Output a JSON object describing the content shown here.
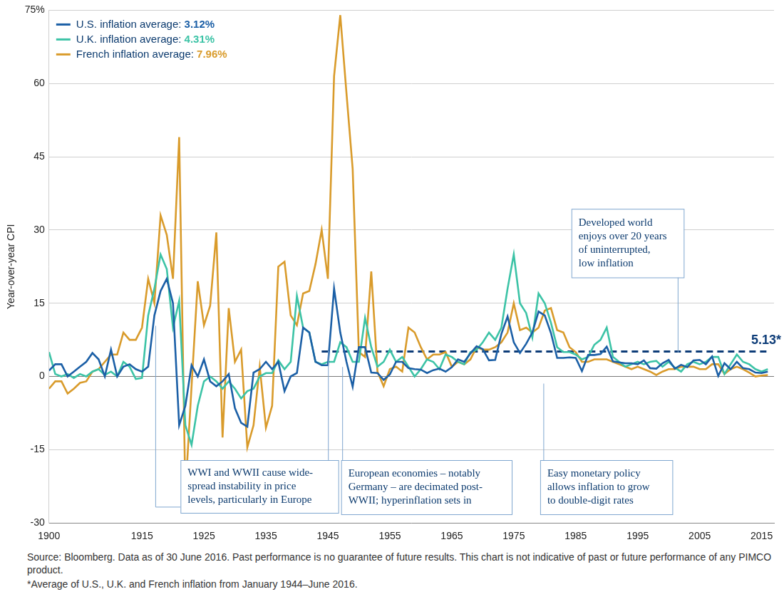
{
  "chart_data": {
    "type": "line",
    "y_label": "Year-over-year CPI",
    "x": [
      1900,
      1901,
      1902,
      1903,
      1904,
      1905,
      1906,
      1907,
      1908,
      1909,
      1910,
      1911,
      1912,
      1913,
      1914,
      1915,
      1916,
      1917,
      1918,
      1919,
      1920,
      1921,
      1922,
      1923,
      1924,
      1925,
      1926,
      1927,
      1928,
      1929,
      1930,
      1931,
      1932,
      1933,
      1934,
      1935,
      1936,
      1937,
      1938,
      1939,
      1940,
      1941,
      1942,
      1943,
      1944,
      1945,
      1946,
      1947,
      1948,
      1949,
      1950,
      1951,
      1952,
      1953,
      1954,
      1955,
      1956,
      1957,
      1958,
      1959,
      1960,
      1961,
      1962,
      1963,
      1964,
      1965,
      1966,
      1967,
      1968,
      1969,
      1970,
      1971,
      1972,
      1973,
      1974,
      1975,
      1976,
      1977,
      1978,
      1979,
      1980,
      1981,
      1982,
      1983,
      1984,
      1985,
      1986,
      1987,
      1988,
      1989,
      1990,
      1991,
      1992,
      1993,
      1994,
      1995,
      1996,
      1997,
      1998,
      1999,
      2000,
      2001,
      2002,
      2003,
      2004,
      2005,
      2006,
      2007,
      2008,
      2009,
      2010,
      2011,
      2012,
      2013,
      2014,
      2015,
      2016
    ],
    "series": [
      {
        "name": "U.S. inflation average: 3.12%",
        "color": "#1b5fa6",
        "line_style": "solid",
        "values": [
          1.2,
          2.5,
          2.5,
          0,
          1,
          2,
          3,
          4.8,
          3.5,
          0,
          5.5,
          0,
          2,
          2.5,
          1.5,
          1,
          2,
          12.5,
          17.5,
          20,
          15,
          -10,
          -6,
          2.3,
          0,
          3.5,
          -1,
          -2,
          -1,
          0.5,
          -6.5,
          -9.5,
          -10.3,
          0.8,
          1.5,
          3,
          1.5,
          3,
          -3,
          0,
          0.7,
          10,
          9,
          3,
          2.3,
          2.3,
          18,
          9,
          3,
          -2.1,
          6,
          6,
          0.8,
          0.7,
          -0.7,
          0.4,
          3,
          3,
          1.7,
          1.5,
          1.4,
          0.7,
          1.3,
          1.6,
          1,
          1.9,
          3.5,
          3,
          4.7,
          6.2,
          5.6,
          3.3,
          3.4,
          8.7,
          12.3,
          7,
          4.8,
          6.7,
          9,
          13.3,
          12.5,
          8.9,
          3.8,
          3.8,
          3.9,
          3.8,
          1.1,
          4.4,
          4.4,
          4.6,
          6.1,
          3.1,
          2.9,
          2.7,
          2.7,
          2.5,
          3.3,
          1.7,
          1.6,
          2.7,
          3.4,
          1.6,
          2.4,
          1.9,
          3.3,
          3.4,
          2.5,
          4.1,
          0.1,
          2.7,
          1.5,
          3,
          1.7,
          1.5,
          0.8,
          0.7,
          1
        ]
      },
      {
        "name": "U.K. inflation average: 4.31%",
        "color": "#3cc3a6",
        "line_style": "solid",
        "values": [
          5,
          0.5,
          0,
          0.5,
          -0.3,
          0.5,
          0,
          1,
          1.5,
          0.3,
          1,
          0,
          3,
          2,
          -0.5,
          -0.3,
          12.5,
          18,
          25,
          22,
          10,
          15.5,
          -10,
          -14,
          -6,
          -1,
          0,
          -1,
          -2.5,
          -1,
          -2.5,
          -4.5,
          -3,
          -2.5,
          0,
          0.7,
          0.7,
          3.3,
          1.5,
          3,
          16.5,
          10,
          9,
          3,
          2.5,
          3,
          3,
          7,
          6,
          3,
          3,
          12,
          6,
          2,
          3,
          5.5,
          3,
          4,
          2,
          0,
          1.5,
          3.5,
          3,
          1.5,
          4.5,
          4,
          3,
          2.5,
          5,
          5.5,
          7,
          9,
          7.5,
          10,
          18,
          25,
          15,
          13,
          8,
          17,
          15,
          11,
          6,
          5,
          5,
          4.5,
          3.5,
          4,
          6.5,
          7.5,
          10,
          4,
          3,
          2,
          2.5,
          3,
          2.5,
          3,
          3.2,
          2,
          3,
          1.8,
          1,
          2.5,
          3,
          2.5,
          3,
          4,
          4,
          0.5,
          2.5,
          4.5,
          3,
          2.5,
          1.5,
          1,
          1.5
        ]
      },
      {
        "name": "French inflation average: 7.96%",
        "color": "#d99b2b",
        "line_style": "solid",
        "values": [
          -2.5,
          -1,
          -1,
          -3.5,
          -2.5,
          -1.3,
          -1,
          1,
          1.5,
          3,
          4.5,
          4.5,
          9,
          7.5,
          7.5,
          10,
          20,
          15,
          33,
          29,
          20,
          49,
          -24,
          -2,
          19.5,
          10.5,
          14.5,
          29.5,
          -12.5,
          14,
          3,
          5.5,
          -14.5,
          -10,
          2,
          -10.5,
          -6,
          22.5,
          23.5,
          12.5,
          10.5,
          17,
          17.5,
          23,
          30,
          20,
          61.5,
          74,
          58,
          42.5,
          5,
          4,
          21.5,
          1,
          -2,
          1.5,
          2,
          1,
          10,
          9,
          6,
          3.5,
          4.5,
          4.5,
          5,
          2,
          3,
          2.5,
          3.5,
          6,
          5.5,
          5.5,
          6,
          7,
          9,
          15,
          9.5,
          10,
          9,
          10,
          13.5,
          14,
          9.5,
          9,
          6,
          5,
          3,
          3,
          3.5,
          3.5,
          3.5,
          3,
          2.5,
          2,
          1.5,
          2,
          1.5,
          1,
          0.3,
          1,
          1.5,
          1.5,
          2,
          2,
          2,
          1.5,
          1.5,
          2.5,
          2.5,
          0.5,
          1.5,
          2,
          1.5,
          0.8,
          0,
          0.2,
          0.3
        ]
      }
    ],
    "reference_line": {
      "value": 5.13,
      "x": [
        1944,
        2016
      ],
      "label": "5.13*",
      "color": "#0d3c78",
      "line_style": "dashed"
    },
    "xlim": [
      1900,
      2017
    ],
    "xticks": [
      1900,
      1915,
      1925,
      1935,
      1945,
      1955,
      1965,
      1975,
      1985,
      1995,
      2005,
      2015
    ],
    "ylim": [
      -30,
      75
    ],
    "yticks": [
      -30,
      -15,
      0,
      15,
      30,
      45,
      60,
      {
        "value": 75,
        "label": "75%"
      }
    ],
    "grid": true,
    "legend": "top-left",
    "annotations": [
      {
        "text": [
          "WWI and WWII cause wide-",
          "spread instability in price",
          "levels, particularly in Europe"
        ]
      },
      {
        "text": [
          "European economies – notably",
          "Germany – are decimated post-",
          "WWII; hyperinflation sets in"
        ]
      },
      {
        "text": [
          "Easy monetary policy",
          "allows inflation to grow",
          "to double-digit rates"
        ]
      },
      {
        "text": [
          "Developed world",
          "enjoys over 20 years",
          "of uninterrupted,",
          "low inflation"
        ]
      }
    ],
    "notes": [
      "Source: Bloomberg. Data as of 30 June 2016. Past performance is no guarantee of future results. This chart is not indicative of past or future performance of any PIMCO product.",
      "*Average of U.S., U.K. and French inflation from January 1944–June 2016."
    ]
  }
}
